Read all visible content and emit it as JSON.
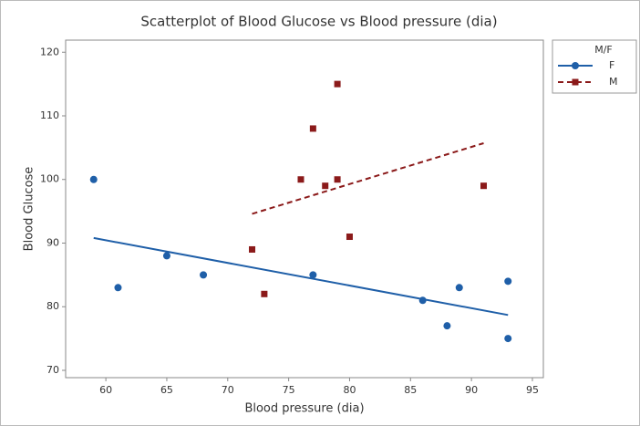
{
  "chart_data": {
    "type": "scatter",
    "title": "Scatterplot of Blood Glucose vs Blood pressure (dia)",
    "x_label": "Blood pressure (dia)",
    "y_label": "Blood Glucose",
    "legend_title": "M/F",
    "legend": "right",
    "xlim": [
      56.7,
      95.9
    ],
    "ylim": [
      68.85,
      121.9
    ],
    "xticks": [
      60,
      65,
      70,
      75,
      80,
      85,
      90,
      95
    ],
    "yticks": [
      70,
      80,
      90,
      100,
      110,
      120
    ],
    "series": [
      {
        "name": "F",
        "color": "#1f5fa8",
        "marker": "circle",
        "line_style": "solid",
        "x": [
          59,
          61,
          65,
          68,
          77,
          86,
          88,
          89,
          93,
          93
        ],
        "values": [
          100,
          83,
          88,
          85,
          85,
          81,
          77,
          83,
          84,
          75
        ],
        "fit": {
          "x": [
            59,
            93
          ],
          "y": [
            90.8,
            78.7
          ]
        }
      },
      {
        "name": "M",
        "color": "#8b1a1a",
        "marker": "square",
        "line_style": "dashed",
        "x": [
          72,
          73,
          76,
          77,
          78,
          79,
          79,
          80,
          91
        ],
        "values": [
          89,
          82,
          100,
          108,
          99,
          115,
          100,
          91,
          99
        ],
        "fit": {
          "x": [
            72,
            91
          ],
          "y": [
            94.6,
            105.7
          ]
        }
      }
    ]
  }
}
